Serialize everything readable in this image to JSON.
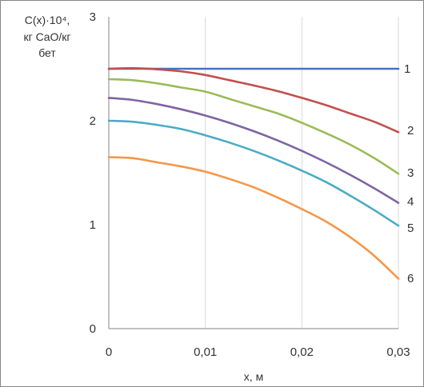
{
  "chart_data": {
    "type": "line",
    "ylabel_lines": [
      "C(x)·10⁴,",
      "кг CaO/кг",
      "бет"
    ],
    "xlabel": "x, м",
    "xlim": [
      0,
      0.03
    ],
    "ylim": [
      0,
      3
    ],
    "x_ticks": [
      0,
      0.01,
      0.02,
      0.03
    ],
    "x_tick_labels": [
      "0",
      "0,01",
      "0,02",
      "0,03"
    ],
    "y_ticks": [
      0,
      1,
      2,
      3
    ],
    "y_tick_labels": [
      "0",
      "1",
      "2",
      "3"
    ],
    "grid": {
      "vertical": true,
      "horizontal": false
    },
    "series": [
      {
        "label": "1",
        "color": "#4472C4",
        "x": [
          0,
          0.005,
          0.01,
          0.015,
          0.02,
          0.025,
          0.03
        ],
        "y": [
          2.5,
          2.5,
          2.5,
          2.5,
          2.5,
          2.5,
          2.5
        ]
      },
      {
        "label": "2",
        "color": "#C0504D",
        "x": [
          0,
          0.0025,
          0.005,
          0.0075,
          0.01,
          0.0125,
          0.015,
          0.0175,
          0.02,
          0.0225,
          0.025,
          0.0275,
          0.03
        ],
        "y": [
          2.5,
          2.505,
          2.495,
          2.475,
          2.44,
          2.39,
          2.34,
          2.285,
          2.22,
          2.15,
          2.07,
          1.99,
          1.89
        ]
      },
      {
        "label": "3",
        "color": "#9BBB59",
        "x": [
          0,
          0.0025,
          0.005,
          0.0075,
          0.01,
          0.0125,
          0.015,
          0.0175,
          0.02,
          0.0225,
          0.025,
          0.0275,
          0.03
        ],
        "y": [
          2.4,
          2.39,
          2.36,
          2.32,
          2.28,
          2.21,
          2.14,
          2.07,
          1.98,
          1.88,
          1.77,
          1.64,
          1.49
        ]
      },
      {
        "label": "4",
        "color": "#8064A2",
        "x": [
          0,
          0.0025,
          0.005,
          0.0075,
          0.01,
          0.0125,
          0.015,
          0.0175,
          0.02,
          0.0225,
          0.025,
          0.0275,
          0.03
        ],
        "y": [
          2.22,
          2.2,
          2.16,
          2.11,
          2.05,
          1.98,
          1.9,
          1.81,
          1.71,
          1.6,
          1.48,
          1.35,
          1.21
        ]
      },
      {
        "label": "5",
        "color": "#4BACC6",
        "x": [
          0,
          0.0025,
          0.005,
          0.0075,
          0.01,
          0.0125,
          0.015,
          0.0175,
          0.02,
          0.0225,
          0.025,
          0.0275,
          0.03
        ],
        "y": [
          2.0,
          1.99,
          1.96,
          1.92,
          1.86,
          1.79,
          1.71,
          1.62,
          1.52,
          1.41,
          1.28,
          1.14,
          0.99
        ]
      },
      {
        "label": "6",
        "color": "#F79646",
        "x": [
          0,
          0.0025,
          0.005,
          0.0075,
          0.01,
          0.0125,
          0.015,
          0.0175,
          0.02,
          0.0225,
          0.025,
          0.0275,
          0.03
        ],
        "y": [
          1.65,
          1.64,
          1.6,
          1.56,
          1.51,
          1.44,
          1.36,
          1.26,
          1.15,
          1.03,
          0.88,
          0.7,
          0.48
        ]
      }
    ]
  }
}
